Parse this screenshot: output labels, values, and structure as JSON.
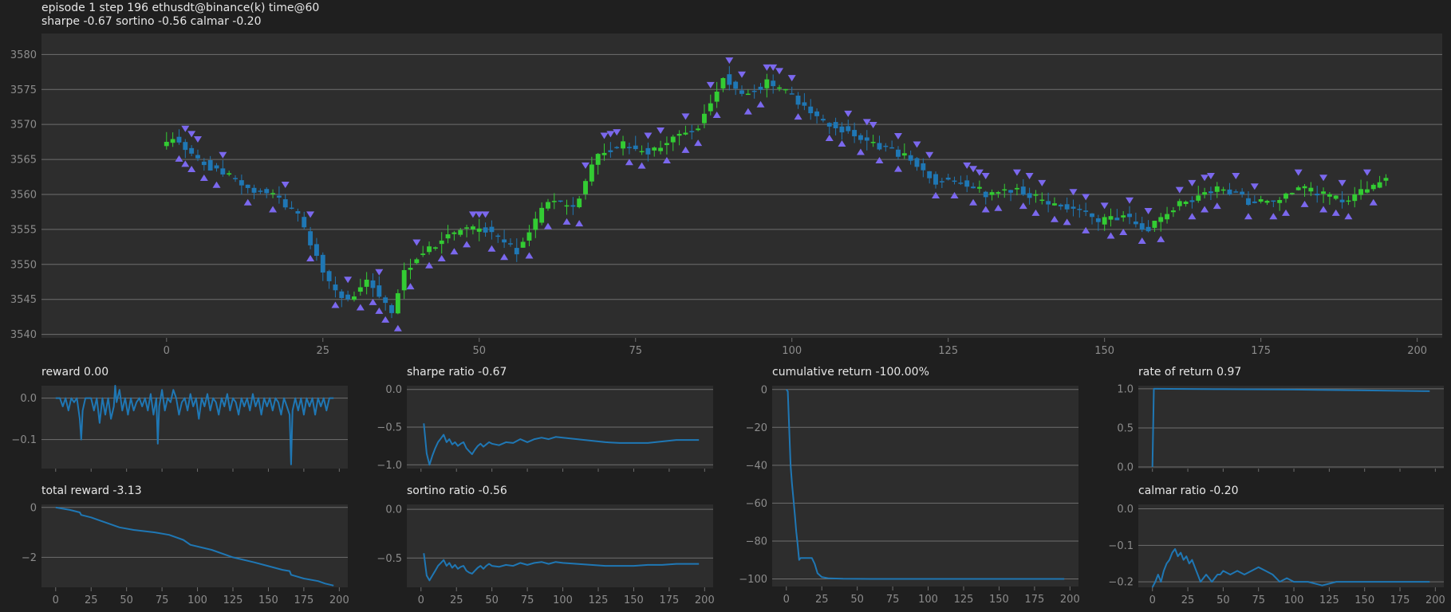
{
  "header": {
    "line1": "episode 1 step 196 ethusdt@binance(k) time@60",
    "line2": "sharpe -0.67 sortino -0.56 calmar -0.20"
  },
  "colors": {
    "up": "#33cc33",
    "down": "#1f77b4",
    "marker": "#7b68ee",
    "line": "#1f77b4",
    "bg": "#2d2d2d",
    "page": "#1f1f1f"
  },
  "chart_data": [
    {
      "id": "main",
      "type": "candlestick",
      "title": "",
      "xlim": [
        -20,
        204
      ],
      "ylim": [
        3539.5,
        3583
      ],
      "xticks": [
        0,
        25,
        50,
        75,
        100,
        125,
        150,
        175,
        200
      ],
      "yticks": [
        3540,
        3545,
        3550,
        3555,
        3560,
        3565,
        3570,
        3575,
        3580
      ],
      "grid": true,
      "anchors": [
        [
          0,
          3567
        ],
        [
          2,
          3568
        ],
        [
          6,
          3565
        ],
        [
          10,
          3563
        ],
        [
          14,
          3561
        ],
        [
          18,
          3560
        ],
        [
          22,
          3557
        ],
        [
          24,
          3553
        ],
        [
          27,
          3547
        ],
        [
          30,
          3545
        ],
        [
          33,
          3548
        ],
        [
          37,
          3543
        ],
        [
          39,
          3549
        ],
        [
          42,
          3552
        ],
        [
          48,
          3555
        ],
        [
          52,
          3555
        ],
        [
          57,
          3552
        ],
        [
          62,
          3559
        ],
        [
          66,
          3558
        ],
        [
          70,
          3566
        ],
        [
          74,
          3567
        ],
        [
          78,
          3566
        ],
        [
          82,
          3568
        ],
        [
          86,
          3570
        ],
        [
          90,
          3577
        ],
        [
          93,
          3574
        ],
        [
          97,
          3576
        ],
        [
          101,
          3574
        ],
        [
          105,
          3571
        ],
        [
          110,
          3569
        ],
        [
          115,
          3567
        ],
        [
          120,
          3565
        ],
        [
          124,
          3562
        ],
        [
          128,
          3562
        ],
        [
          132,
          3560
        ],
        [
          137,
          3561
        ],
        [
          141,
          3559
        ],
        [
          146,
          3558
        ],
        [
          150,
          3556
        ],
        [
          154,
          3557
        ],
        [
          158,
          3555
        ],
        [
          162,
          3558
        ],
        [
          166,
          3560
        ],
        [
          170,
          3561
        ],
        [
          174,
          3559
        ],
        [
          178,
          3559
        ],
        [
          182,
          3561
        ],
        [
          186,
          3560
        ],
        [
          190,
          3559
        ],
        [
          193,
          3561
        ],
        [
          196,
          3562
        ]
      ],
      "sell_markers_x": [
        3,
        4,
        5,
        9,
        19,
        23,
        29,
        34,
        40,
        49,
        50,
        51,
        67,
        70,
        71,
        72,
        77,
        79,
        83,
        87,
        90,
        92,
        96,
        97,
        98,
        100,
        109,
        112,
        113,
        117,
        120,
        122,
        128,
        129,
        130,
        131,
        136,
        138,
        140,
        145,
        147,
        150,
        154,
        157,
        162,
        164,
        166,
        167,
        171,
        174,
        181,
        185,
        188,
        192
      ],
      "buy_markers_x": [
        2,
        3,
        4,
        6,
        8,
        13,
        17,
        23,
        27,
        31,
        33,
        34,
        35,
        37,
        39,
        42,
        44,
        46,
        48,
        52,
        54,
        58,
        61,
        64,
        66,
        74,
        76,
        80,
        83,
        85,
        88,
        93,
        95,
        101,
        106,
        108,
        111,
        114,
        117,
        123,
        126,
        129,
        131,
        133,
        137,
        139,
        142,
        144,
        147,
        151,
        153,
        156,
        159,
        164,
        166,
        168,
        173,
        177,
        179,
        182,
        185,
        187,
        189,
        193
      ]
    },
    {
      "id": "reward",
      "type": "line",
      "title": "reward 0.00",
      "xlim": [
        -10,
        206
      ],
      "ylim": [
        -0.17,
        0.03
      ],
      "xticks": [
        0,
        25,
        50,
        75,
        100,
        125,
        150,
        175,
        200
      ],
      "yticks": [
        0.0,
        -0.1
      ],
      "ytick_labels": [
        "0.0",
        "−0.1"
      ],
      "show_xlabels": false,
      "grid": true,
      "x": [
        0,
        3,
        5,
        7,
        9,
        11,
        13,
        15,
        17,
        18,
        19,
        21,
        25,
        27,
        29,
        31,
        33,
        35,
        37,
        39,
        41,
        42,
        43,
        45,
        47,
        49,
        51,
        53,
        55,
        57,
        59,
        61,
        63,
        65,
        67,
        69,
        71,
        72,
        73,
        75,
        77,
        79,
        81,
        83,
        85,
        87,
        89,
        91,
        93,
        95,
        97,
        99,
        101,
        103,
        105,
        107,
        109,
        111,
        113,
        115,
        117,
        119,
        121,
        123,
        125,
        127,
        129,
        131,
        133,
        135,
        137,
        139,
        141,
        143,
        145,
        147,
        149,
        151,
        153,
        155,
        157,
        159,
        161,
        163,
        165,
        166,
        167,
        169,
        171,
        173,
        175,
        177,
        179,
        181,
        183,
        185,
        187,
        189,
        191,
        193,
        196
      ],
      "y": [
        0.0,
        0.0,
        -0.02,
        0.0,
        -0.03,
        0.0,
        -0.01,
        0.0,
        -0.05,
        -0.1,
        -0.03,
        0.0,
        0.0,
        -0.03,
        0.0,
        -0.06,
        0.0,
        -0.04,
        0.0,
        -0.05,
        -0.02,
        0.03,
        -0.01,
        0.02,
        -0.03,
        0.0,
        -0.04,
        0.0,
        -0.03,
        -0.01,
        0.0,
        -0.02,
        0.0,
        -0.03,
        0.01,
        -0.04,
        0.0,
        -0.11,
        -0.02,
        0.02,
        -0.03,
        0.0,
        -0.01,
        0.02,
        0.0,
        -0.04,
        -0.01,
        0.0,
        -0.03,
        0.01,
        -0.02,
        0.0,
        -0.05,
        0.0,
        -0.02,
        0.01,
        -0.03,
        0.0,
        -0.01,
        -0.04,
        0.0,
        -0.02,
        0.01,
        -0.03,
        0.0,
        -0.01,
        -0.04,
        0.0,
        -0.02,
        0.0,
        -0.03,
        0.01,
        -0.02,
        0.0,
        -0.04,
        0.0,
        -0.02,
        0.0,
        -0.03,
        0.0,
        -0.01,
        -0.04,
        0.0,
        -0.02,
        -0.04,
        -0.16,
        -0.03,
        0.0,
        -0.03,
        0.0,
        -0.04,
        0.0,
        -0.02,
        0.0,
        -0.04,
        0.0,
        -0.02,
        0.0,
        -0.03,
        0.0,
        0.0
      ]
    },
    {
      "id": "sharpe",
      "type": "line",
      "title": "sharpe ratio -0.67",
      "xlim": [
        -10,
        206
      ],
      "ylim": [
        -1.05,
        0.05
      ],
      "xticks": [
        0,
        25,
        50,
        75,
        100,
        125,
        150,
        175,
        200
      ],
      "yticks": [
        0.0,
        -0.5,
        -1.0
      ],
      "ytick_labels": [
        "0.0",
        "−0.5",
        "−1.0"
      ],
      "show_xlabels": false,
      "grid": true,
      "x": [
        2,
        4,
        6,
        8,
        10,
        12,
        14,
        16,
        18,
        20,
        22,
        24,
        26,
        28,
        30,
        32,
        34,
        36,
        38,
        40,
        42,
        44,
        46,
        48,
        50,
        55,
        60,
        65,
        70,
        75,
        80,
        85,
        90,
        95,
        100,
        110,
        120,
        130,
        140,
        150,
        160,
        170,
        180,
        190,
        196
      ],
      "y": [
        -0.45,
        -0.85,
        -1.0,
        -0.88,
        -0.78,
        -0.7,
        -0.65,
        -0.6,
        -0.7,
        -0.66,
        -0.73,
        -0.7,
        -0.75,
        -0.72,
        -0.7,
        -0.78,
        -0.82,
        -0.86,
        -0.8,
        -0.75,
        -0.72,
        -0.76,
        -0.73,
        -0.7,
        -0.72,
        -0.74,
        -0.7,
        -0.71,
        -0.66,
        -0.7,
        -0.66,
        -0.64,
        -0.66,
        -0.63,
        -0.64,
        -0.66,
        -0.68,
        -0.7,
        -0.71,
        -0.71,
        -0.71,
        -0.69,
        -0.67,
        -0.67,
        -0.67
      ]
    },
    {
      "id": "cumret",
      "type": "line",
      "title": "cumulative return -100.00%",
      "xlim": [
        -10,
        206
      ],
      "ylim": [
        -104,
        2
      ],
      "xticks": [
        0,
        25,
        50,
        75,
        100,
        125,
        150,
        175,
        200
      ],
      "yticks": [
        0,
        -20,
        -40,
        -60,
        -80,
        -100
      ],
      "ytick_labels": [
        "0",
        "−20",
        "−40",
        "−60",
        "−80",
        "−100"
      ],
      "show_xlabels": true,
      "grid": true,
      "x": [
        0,
        1,
        2,
        3,
        4,
        5,
        6,
        7,
        8,
        9,
        10,
        12,
        14,
        16,
        18,
        20,
        22,
        25,
        30,
        40,
        60,
        100,
        150,
        196
      ],
      "y": [
        0,
        -1,
        -20,
        -40,
        -50,
        -58,
        -66,
        -75,
        -82,
        -90,
        -89,
        -89,
        -89,
        -89,
        -89,
        -92,
        -97,
        -99,
        -99.7,
        -99.9,
        -100,
        -100,
        -100,
        -100
      ]
    },
    {
      "id": "ror",
      "type": "line",
      "title": "rate of return 0.97",
      "xlim": [
        -10,
        206
      ],
      "ylim": [
        -0.02,
        1.04
      ],
      "xticks": [
        0,
        25,
        50,
        75,
        100,
        125,
        150,
        175,
        200
      ],
      "yticks": [
        1.0,
        0.5,
        0.0
      ],
      "ytick_labels": [
        "1.0",
        "0.5",
        "0.0"
      ],
      "show_xlabels": false,
      "grid": true,
      "x": [
        0,
        0.5,
        1,
        2,
        50,
        100,
        150,
        196
      ],
      "y": [
        0,
        0.5,
        1.0,
        1.0,
        0.995,
        0.99,
        0.98,
        0.97
      ]
    },
    {
      "id": "total",
      "type": "line",
      "title": "total reward -3.13",
      "xlim": [
        -10,
        206
      ],
      "ylim": [
        -3.2,
        0.12
      ],
      "xticks": [
        0,
        25,
        50,
        75,
        100,
        125,
        150,
        175,
        200
      ],
      "yticks": [
        0,
        -2
      ],
      "ytick_labels": [
        "0",
        "−2"
      ],
      "show_xlabels": true,
      "grid": true,
      "x": [
        0,
        10,
        17,
        18,
        25,
        35,
        45,
        55,
        70,
        80,
        90,
        95,
        110,
        125,
        140,
        150,
        160,
        165,
        166,
        175,
        185,
        190,
        196
      ],
      "y": [
        0,
        -0.1,
        -0.2,
        -0.3,
        -0.4,
        -0.6,
        -0.8,
        -0.9,
        -1.0,
        -1.1,
        -1.3,
        -1.5,
        -1.7,
        -2.0,
        -2.2,
        -2.35,
        -2.5,
        -2.55,
        -2.7,
        -2.85,
        -2.95,
        -3.05,
        -3.13
      ]
    },
    {
      "id": "sortino",
      "type": "line",
      "title": "sortino ratio -0.56",
      "xlim": [
        -10,
        206
      ],
      "ylim": [
        -0.8,
        0.05
      ],
      "xticks": [
        0,
        25,
        50,
        75,
        100,
        125,
        150,
        175,
        200
      ],
      "yticks": [
        0.0,
        -0.5
      ],
      "ytick_labels": [
        "0.0",
        "−0.5"
      ],
      "show_xlabels": true,
      "grid": true,
      "x": [
        2,
        4,
        6,
        8,
        10,
        12,
        14,
        16,
        18,
        20,
        22,
        24,
        26,
        28,
        30,
        32,
        34,
        36,
        38,
        40,
        42,
        44,
        46,
        48,
        50,
        55,
        60,
        65,
        70,
        75,
        80,
        85,
        90,
        95,
        100,
        110,
        120,
        130,
        140,
        150,
        160,
        170,
        180,
        190,
        196
      ],
      "y": [
        -0.45,
        -0.68,
        -0.73,
        -0.68,
        -0.63,
        -0.58,
        -0.55,
        -0.52,
        -0.58,
        -0.55,
        -0.6,
        -0.57,
        -0.61,
        -0.59,
        -0.58,
        -0.63,
        -0.65,
        -0.66,
        -0.63,
        -0.6,
        -0.58,
        -0.61,
        -0.58,
        -0.56,
        -0.58,
        -0.59,
        -0.57,
        -0.58,
        -0.55,
        -0.57,
        -0.55,
        -0.54,
        -0.56,
        -0.54,
        -0.55,
        -0.56,
        -0.57,
        -0.58,
        -0.58,
        -0.58,
        -0.57,
        -0.57,
        -0.56,
        -0.56,
        -0.56
      ]
    },
    {
      "id": "calmar",
      "type": "line",
      "title": "calmar ratio -0.20",
      "xlim": [
        -10,
        206
      ],
      "ylim": [
        -0.215,
        0.012
      ],
      "xticks": [
        0,
        25,
        50,
        75,
        100,
        125,
        150,
        175,
        200
      ],
      "yticks": [
        0.0,
        -0.1,
        -0.2
      ],
      "ytick_labels": [
        "0.0",
        "−0.1",
        "−0.2"
      ],
      "show_xlabels": true,
      "grid": true,
      "x": [
        0,
        2,
        4,
        6,
        8,
        10,
        12,
        14,
        16,
        18,
        20,
        22,
        24,
        26,
        28,
        30,
        32,
        34,
        36,
        38,
        40,
        42,
        44,
        46,
        48,
        50,
        55,
        60,
        65,
        70,
        75,
        80,
        85,
        90,
        95,
        100,
        110,
        120,
        130,
        140,
        150,
        160,
        170,
        180,
        190,
        196
      ],
      "y": [
        -0.215,
        -0.2,
        -0.18,
        -0.2,
        -0.17,
        -0.15,
        -0.14,
        -0.12,
        -0.11,
        -0.13,
        -0.12,
        -0.14,
        -0.13,
        -0.15,
        -0.14,
        -0.16,
        -0.18,
        -0.2,
        -0.19,
        -0.18,
        -0.19,
        -0.2,
        -0.19,
        -0.18,
        -0.18,
        -0.17,
        -0.18,
        -0.17,
        -0.18,
        -0.17,
        -0.16,
        -0.17,
        -0.18,
        -0.2,
        -0.19,
        -0.2,
        -0.2,
        -0.21,
        -0.2,
        -0.2,
        -0.2,
        -0.2,
        -0.2,
        -0.2,
        -0.2,
        -0.2
      ]
    }
  ]
}
